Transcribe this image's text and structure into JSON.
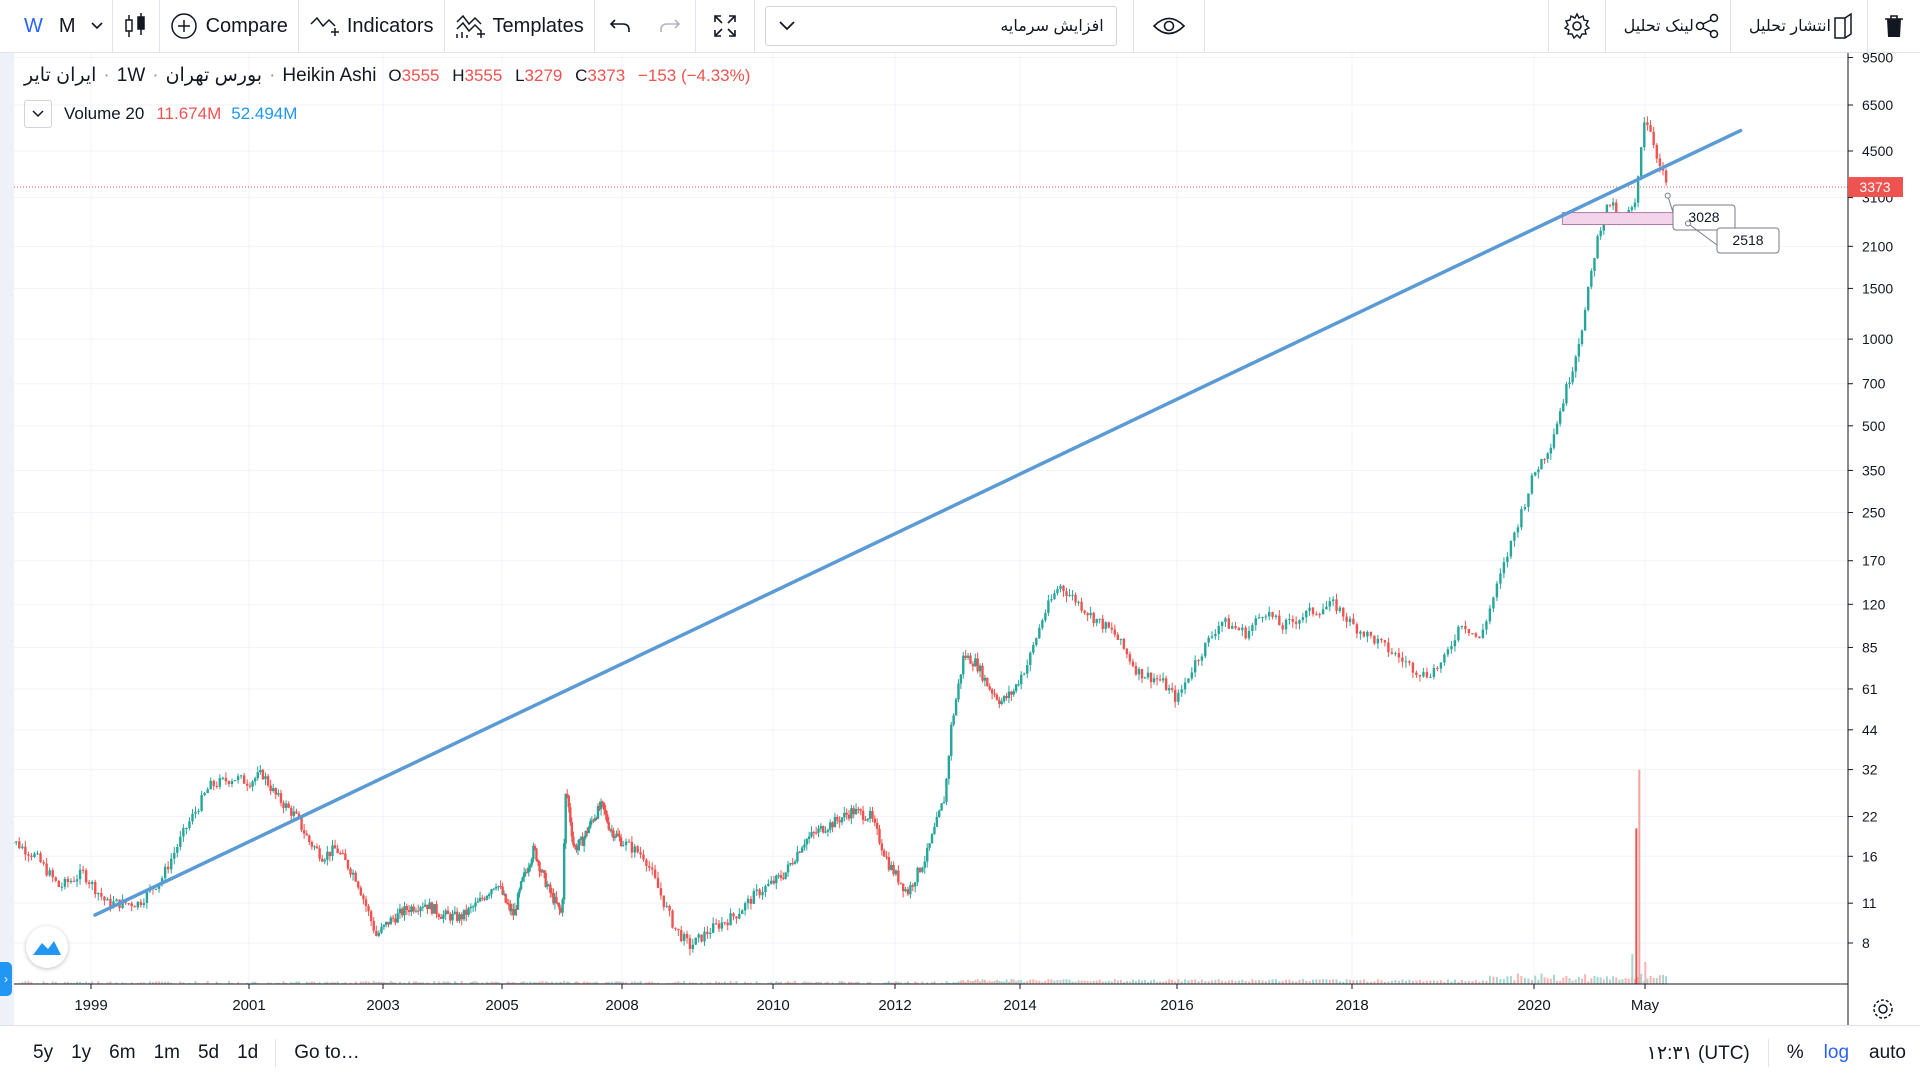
{
  "toolbar": {
    "interval_w": "W",
    "interval_m": "M",
    "compare_label": "Compare",
    "indicators_label": "Indicators",
    "templates_label": "Templates",
    "symbol_search_value": "افزایش سرمایه",
    "publish_label": "انتشار تحلیل",
    "share_link_label": "لینک تحلیل"
  },
  "legend": {
    "symbol": "ایران تایر",
    "interval": "1W",
    "exchange": "بورس تهران",
    "chart_style": "Heikin Ashi",
    "o_key": "O",
    "o_val": "3555",
    "h_key": "H",
    "h_val": "3555",
    "l_key": "L",
    "l_val": "3279",
    "c_key": "C",
    "c_val": "3373",
    "change": "−153 (−4.33%)",
    "volume_label": "Volume 20",
    "volume_value": "11.674M",
    "volume_ma": "52.494M"
  },
  "bottom": {
    "ranges": [
      "5y",
      "1y",
      "6m",
      "1m",
      "5d",
      "1d"
    ],
    "goto_label": "Go to…",
    "time": "۱۲:۳۱ (UTC)",
    "percent_label": "%",
    "log_label": "log",
    "auto_label": "auto"
  },
  "colors": {
    "up": "#26a69a",
    "down": "#ef5350",
    "trendline": "#5b9bd5",
    "accent": "#2962ff",
    "price_label_bg": "#ef5350",
    "zone_fill": "#f3d4ea"
  },
  "chart_data": {
    "type": "candlestick",
    "scale": "log",
    "current_price": 3373,
    "price_label": "3373",
    "y_ticks": [
      8,
      11,
      16,
      22,
      32,
      44,
      61,
      85,
      120,
      170,
      250,
      350,
      500,
      700,
      1000,
      1500,
      2100,
      3100,
      4500,
      6500,
      9500
    ],
    "x_ticks": [
      "1999",
      "2001",
      "2003",
      "2005",
      "2008",
      "2010",
      "2012",
      "2014",
      "2016",
      "2018",
      "2020",
      "May"
    ],
    "price_path": [
      [
        1997.9,
        19
      ],
      [
        1998.3,
        16
      ],
      [
        1998.6,
        12.5
      ],
      [
        1998.9,
        14
      ],
      [
        1999.2,
        11
      ],
      [
        1999.6,
        11
      ],
      [
        1999.9,
        13.5
      ],
      [
        2000.2,
        20
      ],
      [
        2000.5,
        28
      ],
      [
        2000.8,
        30
      ],
      [
        2001.0,
        29
      ],
      [
        2001.2,
        31
      ],
      [
        2001.4,
        26
      ],
      [
        2001.7,
        22
      ],
      [
        2001.9,
        18
      ],
      [
        2002.1,
        16
      ],
      [
        2002.3,
        17
      ],
      [
        2002.6,
        13.5
      ],
      [
        2002.9,
        8.5
      ],
      [
        2003.1,
        9.5
      ],
      [
        2003.4,
        10.5
      ],
      [
        2003.7,
        11
      ],
      [
        2004.0,
        10
      ],
      [
        2004.3,
        9.8
      ],
      [
        2004.6,
        11
      ],
      [
        2004.9,
        13
      ],
      [
        2005.1,
        11
      ],
      [
        2005.3,
        10
      ],
      [
        2005.5,
        13
      ],
      [
        2005.8,
        17
      ],
      [
        2006.0,
        14
      ],
      [
        2006.2,
        12
      ],
      [
        2006.5,
        10
      ],
      [
        2006.6,
        28
      ],
      [
        2006.8,
        17
      ],
      [
        2007.0,
        18
      ],
      [
        2007.3,
        22
      ],
      [
        2007.5,
        24
      ],
      [
        2007.7,
        20
      ],
      [
        2008.0,
        18
      ],
      [
        2008.3,
        16
      ],
      [
        2008.5,
        12
      ],
      [
        2008.7,
        9
      ],
      [
        2008.9,
        7.8
      ],
      [
        2009.2,
        9
      ],
      [
        2009.5,
        10
      ],
      [
        2009.8,
        12
      ],
      [
        2010.2,
        14
      ],
      [
        2010.5,
        18
      ],
      [
        2010.8,
        20
      ],
      [
        2011.0,
        21
      ],
      [
        2011.3,
        23
      ],
      [
        2011.6,
        22
      ],
      [
        2011.9,
        15
      ],
      [
        2012.2,
        12
      ],
      [
        2012.5,
        16
      ],
      [
        2012.8,
        26
      ],
      [
        2012.9,
        45
      ],
      [
        2013.1,
        80
      ],
      [
        2013.3,
        75
      ],
      [
        2013.5,
        62
      ],
      [
        2013.7,
        55
      ],
      [
        2013.9,
        60
      ],
      [
        2014.1,
        75
      ],
      [
        2014.3,
        110
      ],
      [
        2014.5,
        140
      ],
      [
        2014.7,
        125
      ],
      [
        2014.9,
        110
      ],
      [
        2015.2,
        95
      ],
      [
        2015.5,
        70
      ],
      [
        2015.8,
        65
      ],
      [
        2016.0,
        56
      ],
      [
        2016.2,
        75
      ],
      [
        2016.5,
        105
      ],
      [
        2016.8,
        95
      ],
      [
        2017.0,
        115
      ],
      [
        2017.2,
        100
      ],
      [
        2017.5,
        112
      ],
      [
        2017.8,
        120
      ],
      [
        2018.0,
        102
      ],
      [
        2018.3,
        88
      ],
      [
        2018.6,
        75
      ],
      [
        2018.8,
        68
      ],
      [
        2019.0,
        75
      ],
      [
        2019.2,
        105
      ],
      [
        2019.4,
        90
      ],
      [
        2019.6,
        140
      ],
      [
        2019.8,
        220
      ],
      [
        2020.0,
        340
      ],
      [
        2020.2,
        430
      ],
      [
        2020.35,
        600
      ],
      [
        2020.5,
        850
      ],
      [
        2020.62,
        1200
      ],
      [
        2020.75,
        2000
      ],
      [
        2020.85,
        2700
      ],
      [
        2020.95,
        3000
      ],
      [
        2021.05,
        2500
      ],
      [
        2021.15,
        2700
      ],
      [
        2021.25,
        2900
      ],
      [
        2021.33,
        5000
      ],
      [
        2021.37,
        6000
      ],
      [
        2021.45,
        5200
      ],
      [
        2021.55,
        4000
      ],
      [
        2021.65,
        3373
      ]
    ],
    "volume_spike": {
      "x": 2021.3,
      "max_volume": "32"
    },
    "trendline": {
      "start": [
        1999.05,
        10.0
      ],
      "end": [
        2022.55,
        5300
      ]
    },
    "annotations": [
      {
        "label": "3028",
        "price": 3028
      },
      {
        "label": "2518",
        "price": 2518
      }
    ],
    "support_zone": {
      "x_from": 2020.35,
      "x_to": 2021.9,
      "price_low": 2500,
      "price_high": 2750
    }
  }
}
